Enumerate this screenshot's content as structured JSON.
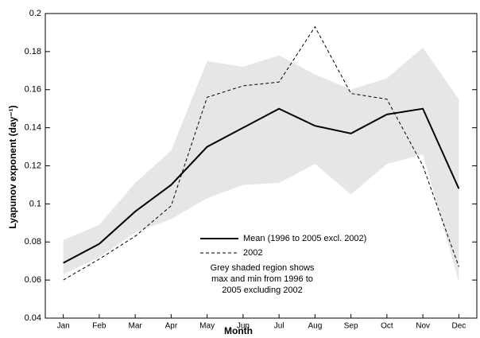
{
  "chart_data": {
    "type": "line",
    "xlabel": "Month",
    "ylabel": "Lyapunov exponent (day⁻¹)",
    "categories": [
      "Jan",
      "Feb",
      "Mar",
      "Apr",
      "May",
      "Jun",
      "Jul",
      "Aug",
      "Sep",
      "Oct",
      "Nov",
      "Dec"
    ],
    "series": [
      {
        "name": "Mean (1996 to 2005 excl. 2002)",
        "color": "#000000",
        "dash": "solid",
        "values": [
          0.069,
          0.079,
          0.096,
          0.11,
          0.13,
          0.14,
          0.15,
          0.141,
          0.137,
          0.147,
          0.15,
          0.108
        ]
      },
      {
        "name": "2002",
        "color": "#000000",
        "dash": "dashed",
        "values": [
          0.06,
          0.071,
          0.083,
          0.099,
          0.156,
          0.162,
          0.164,
          0.193,
          0.158,
          0.155,
          0.12,
          0.067
        ]
      }
    ],
    "band": {
      "color": "#e6e6e6",
      "high": [
        0.081,
        0.089,
        0.111,
        0.128,
        0.175,
        0.172,
        0.178,
        0.168,
        0.16,
        0.166,
        0.182,
        0.155
      ],
      "low": [
        0.063,
        0.072,
        0.085,
        0.092,
        0.103,
        0.11,
        0.111,
        0.121,
        0.105,
        0.121,
        0.126,
        0.059
      ]
    },
    "annotation": [
      "Grey shaded region shows",
      "max and min from 1996 to",
      "2005 excluding 2002"
    ],
    "ylim": [
      0.04,
      0.2
    ],
    "yticks": [
      0.04,
      0.06,
      0.08,
      0.1,
      0.12,
      0.14,
      0.16,
      0.18,
      0.2
    ],
    "grid": false
  }
}
